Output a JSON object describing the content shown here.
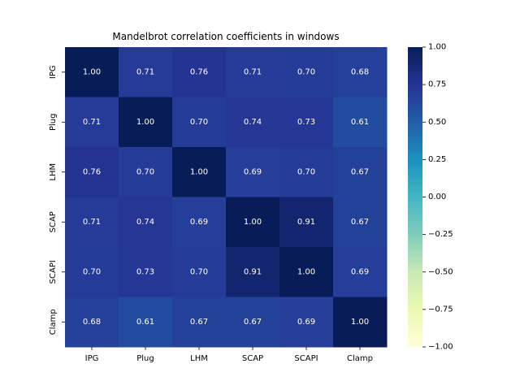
{
  "chart_data": {
    "type": "heatmap",
    "title": "Mandelbrot correlation coefficients in windows",
    "xlabel": "",
    "ylabel": "",
    "x_categories": [
      "IPG",
      "Plug",
      "LHM",
      "SCAP",
      "SCAPI",
      "Clamp"
    ],
    "y_categories": [
      "IPG",
      "Plug",
      "LHM",
      "SCAP",
      "SCAPI",
      "Clamp"
    ],
    "values": [
      [
        1.0,
        0.71,
        0.76,
        0.71,
        0.7,
        0.68
      ],
      [
        0.71,
        1.0,
        0.7,
        0.74,
        0.73,
        0.61
      ],
      [
        0.76,
        0.7,
        1.0,
        0.69,
        0.7,
        0.67
      ],
      [
        0.71,
        0.74,
        0.69,
        1.0,
        0.91,
        0.67
      ],
      [
        0.7,
        0.73,
        0.7,
        0.91,
        1.0,
        0.69
      ],
      [
        0.68,
        0.61,
        0.67,
        0.67,
        0.69,
        1.0
      ]
    ],
    "value_labels": [
      [
        "1.00",
        "0.71",
        "0.76",
        "0.71",
        "0.70",
        "0.68"
      ],
      [
        "0.71",
        "1.00",
        "0.70",
        "0.74",
        "0.73",
        "0.61"
      ],
      [
        "0.76",
        "0.70",
        "1.00",
        "0.69",
        "0.70",
        "0.67"
      ],
      [
        "0.71",
        "0.74",
        "0.69",
        "1.00",
        "0.91",
        "0.67"
      ],
      [
        "0.70",
        "0.73",
        "0.70",
        "0.91",
        "1.00",
        "0.69"
      ],
      [
        "0.68",
        "0.61",
        "0.67",
        "0.67",
        "0.69",
        "1.00"
      ]
    ],
    "annotations": true,
    "colormap": "YlGnBu",
    "vmin": -1.0,
    "vmax": 1.0,
    "colorbar": {
      "ticks": [
        1.0,
        0.75,
        0.5,
        0.25,
        0.0,
        -0.25,
        -0.5,
        -0.75,
        -1.0
      ],
      "tick_labels": [
        "1.00",
        "0.75",
        "0.50",
        "0.25",
        "0.00",
        "−0.25",
        "−0.50",
        "−0.75",
        "−1.00"
      ],
      "placement": "right"
    },
    "grid": false,
    "annotation_colors": {
      "dark_text": "#262626",
      "light_text": "#ffffff"
    }
  }
}
